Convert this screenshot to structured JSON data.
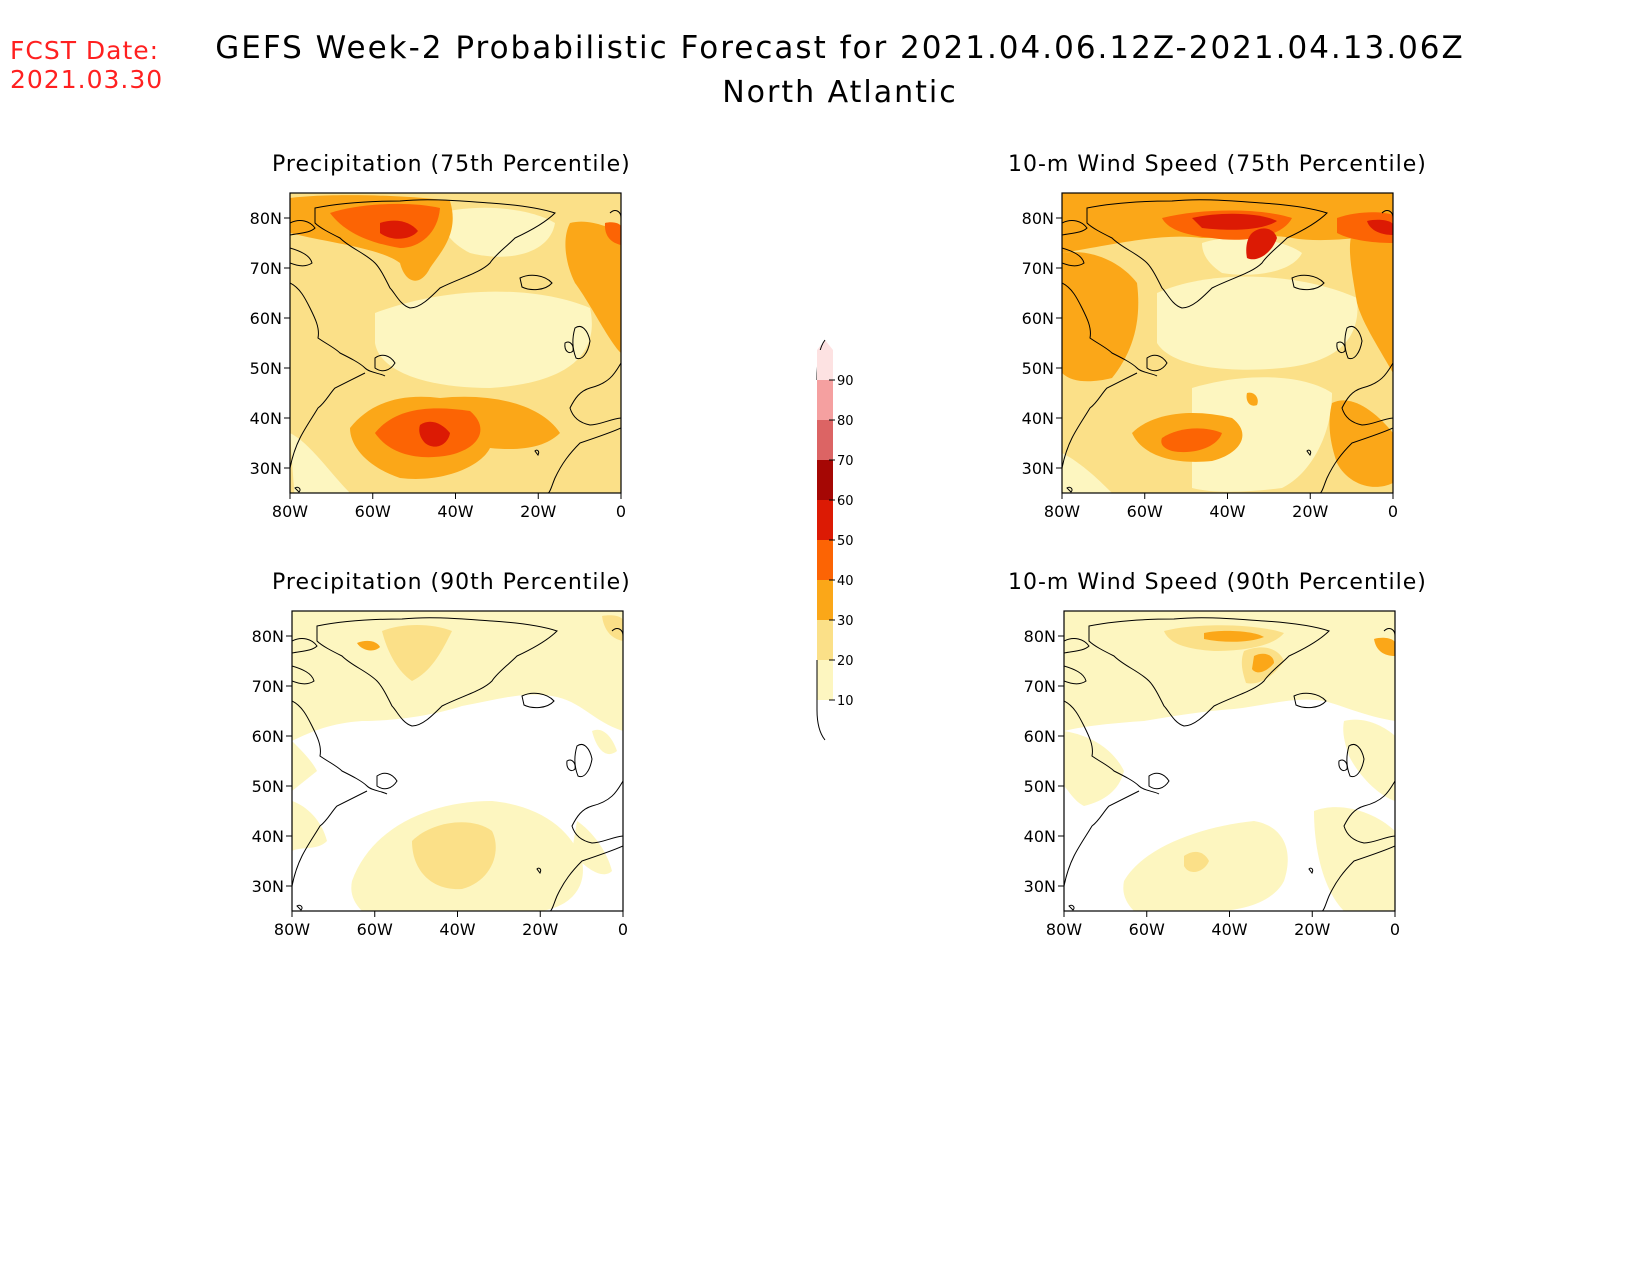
{
  "fcst_date": {
    "label": "FCST Date:",
    "value": "2021.03.30"
  },
  "title": "GEFS Week-2 Probabilistic Forecast for 2021.04.06.12Z-2021.04.13.06Z",
  "subtitle": "North Atlantic",
  "colors": {
    "c10": "#fdf6c0",
    "c20": "#fbe088",
    "c30": "#fba718",
    "c40": "#fc6404",
    "c50": "#dc1a04",
    "c60": "#a50704",
    "c70": "#dc6464",
    "c80": "#f5a0a0",
    "c90": "#fde2e2",
    "coast": "#000000"
  },
  "colorbar": {
    "labels": [
      "90",
      "80",
      "70",
      "60",
      "50",
      "40",
      "30",
      "20",
      "10"
    ]
  },
  "axes": {
    "lat_labels": [
      "80N",
      "70N",
      "60N",
      "50N",
      "40N",
      "30N"
    ],
    "lon_labels": [
      "80W",
      "60W",
      "40W",
      "20W",
      "0"
    ]
  },
  "panels": [
    {
      "id": "precip75",
      "title": "Precipitation (75th Percentile)"
    },
    {
      "id": "wind75",
      "title": "10-m Wind Speed (75th Percentile)"
    },
    {
      "id": "precip90",
      "title": "Precipitation (90th Percentile)"
    },
    {
      "id": "wind90",
      "title": "10-m Wind Speed (90th Percentile)"
    }
  ]
}
